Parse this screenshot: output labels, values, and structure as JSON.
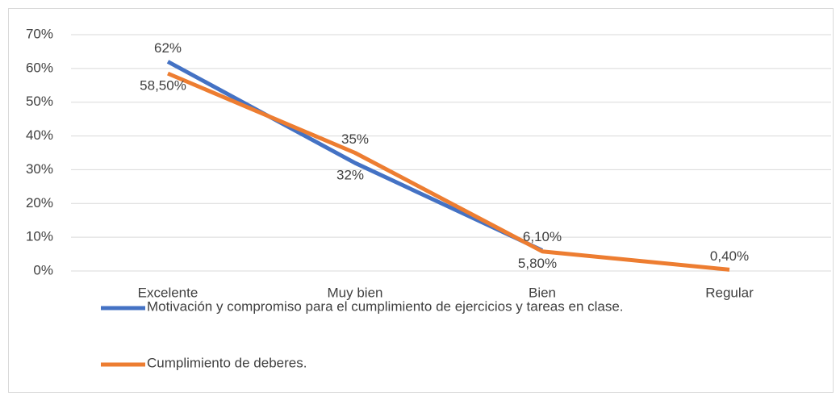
{
  "chart_data": {
    "type": "line",
    "categories": [
      "Excelente",
      "Muy bien",
      "Bien",
      "Regular"
    ],
    "series": [
      {
        "name": "Motivación y compromiso para el cumplimiento de ejercicios y tareas en clase.",
        "color": "#4472c4",
        "values": [
          62,
          32,
          6.1,
          null
        ],
        "value_labels": [
          "62%",
          "32%",
          "6,10%",
          null
        ]
      },
      {
        "name": "Cumplimiento de deberes.",
        "color": "#ed7d31",
        "values": [
          58.5,
          35,
          5.8,
          0.4
        ],
        "value_labels": [
          "58,50%",
          "35%",
          "5,80%",
          "0,40%"
        ]
      }
    ],
    "ylim": [
      0,
      70
    ],
    "yticks": [
      {
        "value": 0,
        "label": "0%"
      },
      {
        "value": 10,
        "label": "10%"
      },
      {
        "value": 20,
        "label": "20%"
      },
      {
        "value": 30,
        "label": "30%"
      },
      {
        "value": 40,
        "label": "40%"
      },
      {
        "value": 50,
        "label": "50%"
      },
      {
        "value": 60,
        "label": "60%"
      },
      {
        "value": 70,
        "label": "70%"
      }
    ],
    "grid": true,
    "legend": "bottom"
  }
}
